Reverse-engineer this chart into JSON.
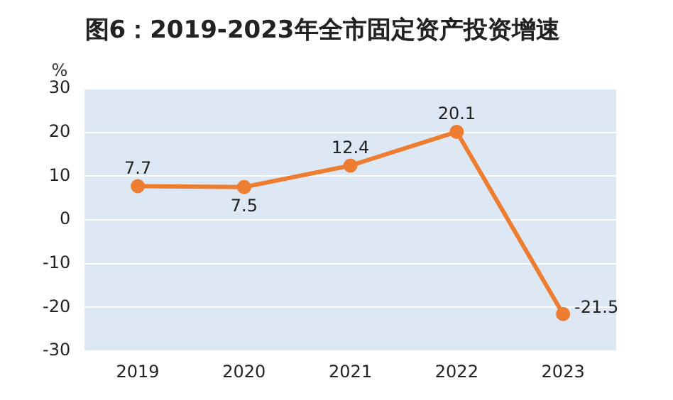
{
  "chart_data": {
    "type": "line",
    "title": "图6：2019-2023年全市固定资产投资增速",
    "ylabel": "%",
    "categories": [
      "2019",
      "2020",
      "2021",
      "2022",
      "2023"
    ],
    "series": [
      {
        "color": "#ed7d31",
        "values": [
          7.7,
          7.5,
          12.4,
          20.1,
          -21.5
        ]
      }
    ],
    "ylim": [
      -30,
      30
    ],
    "yticks": [
      -30,
      -20,
      -10,
      0,
      10,
      20,
      30
    ],
    "grid": "y",
    "legend": false,
    "marker": "circle",
    "line_style": "solid",
    "data_labels": true
  }
}
